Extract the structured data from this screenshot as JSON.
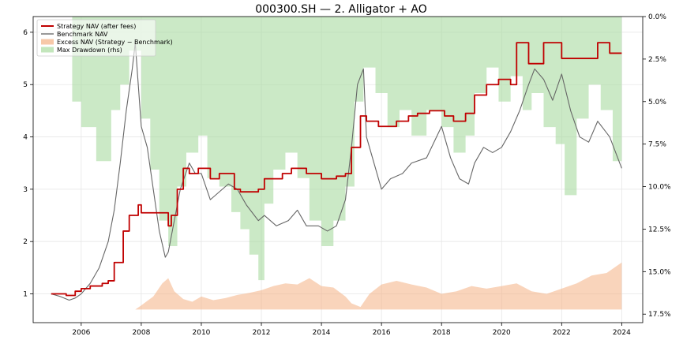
{
  "chart_data": {
    "type": "line",
    "title": "000300.SH — 2. Alligator + AO",
    "xlabel": "",
    "ylabel": "",
    "x_ticks": [
      "2006",
      "2008",
      "2010",
      "2012",
      "2014",
      "2016",
      "2018",
      "2020",
      "2022",
      "2024"
    ],
    "x_tick_values": [
      2006,
      2008,
      2010,
      2012,
      2014,
      2016,
      2018,
      2020,
      2022,
      2024
    ],
    "xlim": [
      2004.4,
      2024.7
    ],
    "ylim": [
      0.45,
      6.3
    ],
    "y_ticks": [
      "1",
      "2",
      "3",
      "4",
      "5",
      "6"
    ],
    "y_tick_values": [
      1,
      2,
      3,
      4,
      5,
      6
    ],
    "y2lim": [
      18.0,
      0.0
    ],
    "y2_ticks": [
      "0.0%",
      "2.5%",
      "5.0%",
      "7.5%",
      "10.0%",
      "12.5%",
      "15.0%",
      "17.5%"
    ],
    "y2_tick_values": [
      0,
      2.5,
      5.0,
      7.5,
      10.0,
      12.5,
      15.0,
      17.5
    ],
    "grid": true,
    "legend_position": "top-left",
    "legend": [
      {
        "label": "Strategy NAV (after fees)",
        "color": "#c00000",
        "kind": "line"
      },
      {
        "label": "Benchmark NAV",
        "color": "#555555",
        "kind": "line"
      },
      {
        "label": "Excess NAV (Strategy − Benchmark)",
        "color": "#f4b183",
        "kind": "area"
      },
      {
        "label": "Max Drawdown (rhs)",
        "color": "#a9dba0",
        "kind": "area"
      }
    ],
    "series": [
      {
        "name": "Strategy NAV (after fees)",
        "color": "#c00000",
        "step": true,
        "x": [
          2005.0,
          2005.5,
          2005.8,
          2006.0,
          2006.3,
          2006.7,
          2006.9,
          2007.1,
          2007.4,
          2007.6,
          2007.9,
          2008.0,
          2008.4,
          2008.9,
          2009.0,
          2009.2,
          2009.4,
          2009.6,
          2009.9,
          2010.3,
          2010.6,
          2011.1,
          2011.3,
          2011.9,
          2012.1,
          2012.7,
          2013.0,
          2013.5,
          2014.0,
          2014.5,
          2014.8,
          2015.0,
          2015.3,
          2015.5,
          2015.9,
          2016.5,
          2016.9,
          2017.2,
          2017.6,
          2018.1,
          2018.4,
          2018.8,
          2019.1,
          2019.5,
          2019.9,
          2020.3,
          2020.5,
          2020.9,
          2021.4,
          2022.0,
          2022.6,
          2023.2,
          2023.6,
          2024.0
        ],
        "y": [
          1.0,
          0.97,
          1.05,
          1.1,
          1.15,
          1.2,
          1.25,
          1.6,
          2.2,
          2.5,
          2.7,
          2.55,
          2.55,
          2.3,
          2.5,
          3.0,
          3.4,
          3.3,
          3.4,
          3.2,
          3.3,
          3.0,
          2.95,
          3.0,
          3.2,
          3.3,
          3.4,
          3.3,
          3.2,
          3.25,
          3.3,
          3.8,
          4.4,
          4.3,
          4.2,
          4.3,
          4.4,
          4.45,
          4.5,
          4.4,
          4.3,
          4.45,
          4.8,
          5.0,
          5.1,
          5.0,
          5.8,
          5.4,
          5.8,
          5.5,
          5.5,
          5.8,
          5.6,
          5.6
        ]
      },
      {
        "name": "Benchmark NAV",
        "color": "#666666",
        "step": false,
        "x": [
          2005.0,
          2005.3,
          2005.6,
          2005.8,
          2006.0,
          2006.3,
          2006.6,
          2006.9,
          2007.1,
          2007.3,
          2007.5,
          2007.7,
          2007.8,
          2008.0,
          2008.2,
          2008.4,
          2008.6,
          2008.8,
          2008.9,
          2009.1,
          2009.3,
          2009.6,
          2009.8,
          2010.0,
          2010.3,
          2010.5,
          2010.9,
          2011.2,
          2011.5,
          2011.9,
          2012.1,
          2012.5,
          2012.9,
          2013.2,
          2013.5,
          2013.9,
          2014.2,
          2014.5,
          2014.8,
          2015.0,
          2015.2,
          2015.4,
          2015.5,
          2015.7,
          2016.0,
          2016.3,
          2016.7,
          2017.0,
          2017.5,
          2018.0,
          2018.3,
          2018.6,
          2018.9,
          2019.1,
          2019.4,
          2019.7,
          2020.0,
          2020.3,
          2020.6,
          2020.9,
          2021.1,
          2021.4,
          2021.7,
          2022.0,
          2022.3,
          2022.6,
          2022.9,
          2023.2,
          2023.6,
          2023.8,
          2024.0
        ],
        "y": [
          1.0,
          0.95,
          0.88,
          0.92,
          1.0,
          1.2,
          1.5,
          2.0,
          2.6,
          3.5,
          4.5,
          5.3,
          5.8,
          4.2,
          3.8,
          3.0,
          2.2,
          1.7,
          1.8,
          2.4,
          3.0,
          3.5,
          3.3,
          3.3,
          2.8,
          2.9,
          3.1,
          3.0,
          2.7,
          2.4,
          2.5,
          2.3,
          2.4,
          2.6,
          2.3,
          2.3,
          2.2,
          2.3,
          2.8,
          3.8,
          5.0,
          5.3,
          4.0,
          3.6,
          3.0,
          3.2,
          3.3,
          3.5,
          3.6,
          4.2,
          3.6,
          3.2,
          3.1,
          3.5,
          3.8,
          3.7,
          3.8,
          4.1,
          4.5,
          5.0,
          5.3,
          5.1,
          4.7,
          5.2,
          4.5,
          4.0,
          3.9,
          4.3,
          4.0,
          3.7,
          3.4
        ]
      }
    ],
    "excess_nav": {
      "name": "Excess NAV (Strategy − Benchmark)",
      "color": "#f4b183",
      "baseline": 0.7,
      "x": [
        2005.0,
        2006.0,
        2007.0,
        2007.8,
        2008.0,
        2008.4,
        2008.7,
        2008.9,
        2009.1,
        2009.4,
        2009.7,
        2010.0,
        2010.4,
        2010.8,
        2011.2,
        2011.6,
        2012.0,
        2012.4,
        2012.8,
        2013.2,
        2013.6,
        2014.0,
        2014.4,
        2014.8,
        2015.0,
        2015.3,
        2015.6,
        2016.0,
        2016.5,
        2017.0,
        2017.5,
        2018.0,
        2018.5,
        2019.0,
        2019.5,
        2020.0,
        2020.5,
        2021.0,
        2021.5,
        2022.0,
        2022.5,
        2023.0,
        2023.5,
        2024.0
      ],
      "y": [
        0.7,
        0.7,
        0.7,
        0.7,
        0.78,
        0.95,
        1.2,
        1.3,
        1.05,
        0.9,
        0.85,
        0.95,
        0.88,
        0.92,
        0.98,
        1.02,
        1.07,
        1.15,
        1.2,
        1.18,
        1.3,
        1.15,
        1.12,
        0.95,
        0.82,
        0.75,
        1.0,
        1.18,
        1.25,
        1.18,
        1.12,
        1.0,
        1.05,
        1.15,
        1.1,
        1.15,
        1.2,
        1.05,
        1.0,
        1.1,
        1.2,
        1.35,
        1.4,
        1.6
      ]
    },
    "max_drawdown": {
      "name": "Max Drawdown (rhs)",
      "color": "#a9dba0",
      "units": "%",
      "x": [
        2005.7,
        2006.0,
        2006.5,
        2007.0,
        2007.3,
        2007.6,
        2008.0,
        2008.3,
        2008.6,
        2008.9,
        2009.2,
        2009.5,
        2009.9,
        2010.2,
        2010.6,
        2011.0,
        2011.3,
        2011.6,
        2011.9,
        2012.1,
        2012.4,
        2012.8,
        2013.2,
        2013.6,
        2014.0,
        2014.4,
        2014.8,
        2015.1,
        2015.4,
        2015.8,
        2016.2,
        2016.6,
        2017.0,
        2017.5,
        2018.0,
        2018.4,
        2018.8,
        2019.1,
        2019.5,
        2019.9,
        2020.3,
        2020.7,
        2021.0,
        2021.4,
        2021.8,
        2022.1,
        2022.5,
        2022.9,
        2023.3,
        2023.7,
        2024.0
      ],
      "y": [
        5.0,
        6.5,
        8.5,
        5.5,
        4.0,
        2.0,
        6.0,
        9.0,
        12.0,
        13.5,
        10.0,
        8.0,
        7.0,
        9.5,
        10.0,
        11.5,
        12.5,
        14.0,
        15.5,
        11.0,
        9.0,
        8.0,
        9.5,
        12.0,
        13.5,
        12.0,
        10.0,
        5.0,
        3.0,
        4.5,
        6.5,
        5.5,
        7.0,
        5.5,
        6.5,
        8.0,
        7.0,
        4.5,
        3.0,
        5.0,
        3.5,
        5.5,
        4.5,
        6.5,
        7.5,
        10.5,
        6.0,
        4.0,
        5.5,
        8.5,
        7.5
      ]
    }
  }
}
